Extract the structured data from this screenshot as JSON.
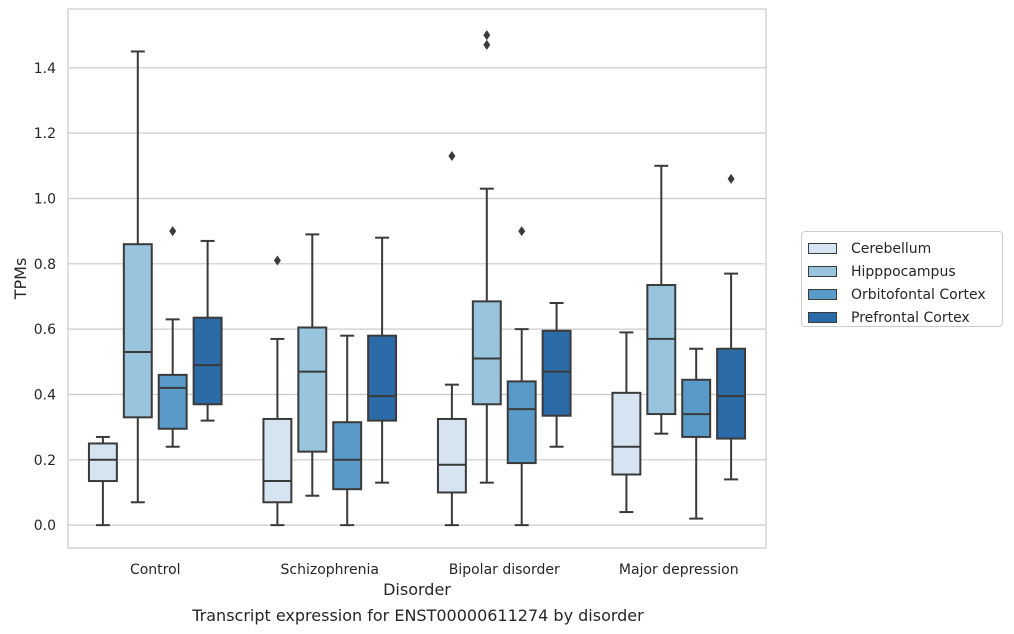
{
  "caption": "Transcript expression for ENST00000611274 by disorder",
  "chart_data": {
    "type": "boxplot",
    "xlabel": "Disorder",
    "ylabel": "TPMs",
    "ylim": [
      -0.07,
      1.58
    ],
    "yticks": [
      "0.0",
      "0.2",
      "0.4",
      "0.6",
      "0.8",
      "1.0",
      "1.2",
      "1.4"
    ],
    "grid": "horizontal",
    "legend_placement": "outside right",
    "categories": [
      "Control",
      "Schizophrenia",
      "Bipolar disorder",
      "Major depression"
    ],
    "series": [
      {
        "name": "Cerebellum",
        "color": "#d6e4f2",
        "boxes": [
          {
            "whislo": 0.0,
            "q1": 0.135,
            "med": 0.2,
            "q3": 0.25,
            "whishi": 0.27,
            "fliers": []
          },
          {
            "whislo": 0.0,
            "q1": 0.07,
            "med": 0.135,
            "q3": 0.325,
            "whishi": 0.57,
            "fliers": [
              0.81
            ]
          },
          {
            "whislo": 0.0,
            "q1": 0.1,
            "med": 0.185,
            "q3": 0.325,
            "whishi": 0.43,
            "fliers": [
              1.13
            ]
          },
          {
            "whislo": 0.04,
            "q1": 0.155,
            "med": 0.24,
            "q3": 0.405,
            "whishi": 0.59,
            "fliers": []
          }
        ]
      },
      {
        "name": "Hipppocampus",
        "color": "#99c4de",
        "boxes": [
          {
            "whislo": 0.07,
            "q1": 0.33,
            "med": 0.53,
            "q3": 0.86,
            "whishi": 1.45,
            "fliers": []
          },
          {
            "whislo": 0.09,
            "q1": 0.225,
            "med": 0.47,
            "q3": 0.605,
            "whishi": 0.89,
            "fliers": []
          },
          {
            "whislo": 0.13,
            "q1": 0.37,
            "med": 0.51,
            "q3": 0.685,
            "whishi": 1.03,
            "fliers": [
              1.47,
              1.5
            ]
          },
          {
            "whislo": 0.28,
            "q1": 0.34,
            "med": 0.57,
            "q3": 0.735,
            "whishi": 1.1,
            "fliers": []
          }
        ]
      },
      {
        "name": "Orbitofontal Cortex",
        "color": "#5a9ac8",
        "boxes": [
          {
            "whislo": 0.24,
            "q1": 0.295,
            "med": 0.42,
            "q3": 0.46,
            "whishi": 0.63,
            "fliers": [
              0.9
            ]
          },
          {
            "whislo": 0.0,
            "q1": 0.11,
            "med": 0.2,
            "q3": 0.315,
            "whishi": 0.58,
            "fliers": []
          },
          {
            "whislo": 0.0,
            "q1": 0.19,
            "med": 0.355,
            "q3": 0.44,
            "whishi": 0.6,
            "fliers": [
              0.9
            ]
          },
          {
            "whislo": 0.02,
            "q1": 0.27,
            "med": 0.34,
            "q3": 0.445,
            "whishi": 0.54,
            "fliers": []
          }
        ]
      },
      {
        "name": "Prefrontal Cortex",
        "color": "#2b6ba8",
        "boxes": [
          {
            "whislo": 0.32,
            "q1": 0.37,
            "med": 0.49,
            "q3": 0.635,
            "whishi": 0.87,
            "fliers": []
          },
          {
            "whislo": 0.13,
            "q1": 0.32,
            "med": 0.395,
            "q3": 0.58,
            "whishi": 0.88,
            "fliers": []
          },
          {
            "whislo": 0.24,
            "q1": 0.335,
            "med": 0.47,
            "q3": 0.595,
            "whishi": 0.68,
            "fliers": []
          },
          {
            "whislo": 0.14,
            "q1": 0.265,
            "med": 0.395,
            "q3": 0.54,
            "whishi": 0.77,
            "fliers": [
              1.06
            ]
          }
        ]
      }
    ]
  }
}
